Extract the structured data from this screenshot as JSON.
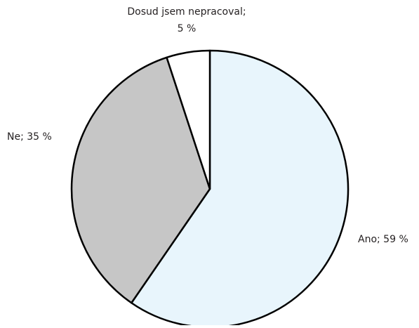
{
  "chart_data": {
    "type": "pie",
    "title": "",
    "slices": [
      {
        "label": "Ano",
        "value": 59,
        "color": "#e8f5fc",
        "label_lines": [
          "Ano; 59 %"
        ]
      },
      {
        "label": "Ne",
        "value": 35,
        "color": "#c6c6c6",
        "label_lines": [
          "Ne; 35 %"
        ]
      },
      {
        "label": "Dosud jsem nepracoval",
        "value": 5,
        "color": "#ffffff",
        "label_lines": [
          "Dosud jsem nepracoval;",
          "5 %"
        ]
      }
    ],
    "stroke_color": "#000000",
    "start": "12 o'clock",
    "direction": "clockwise",
    "legend": "none"
  }
}
